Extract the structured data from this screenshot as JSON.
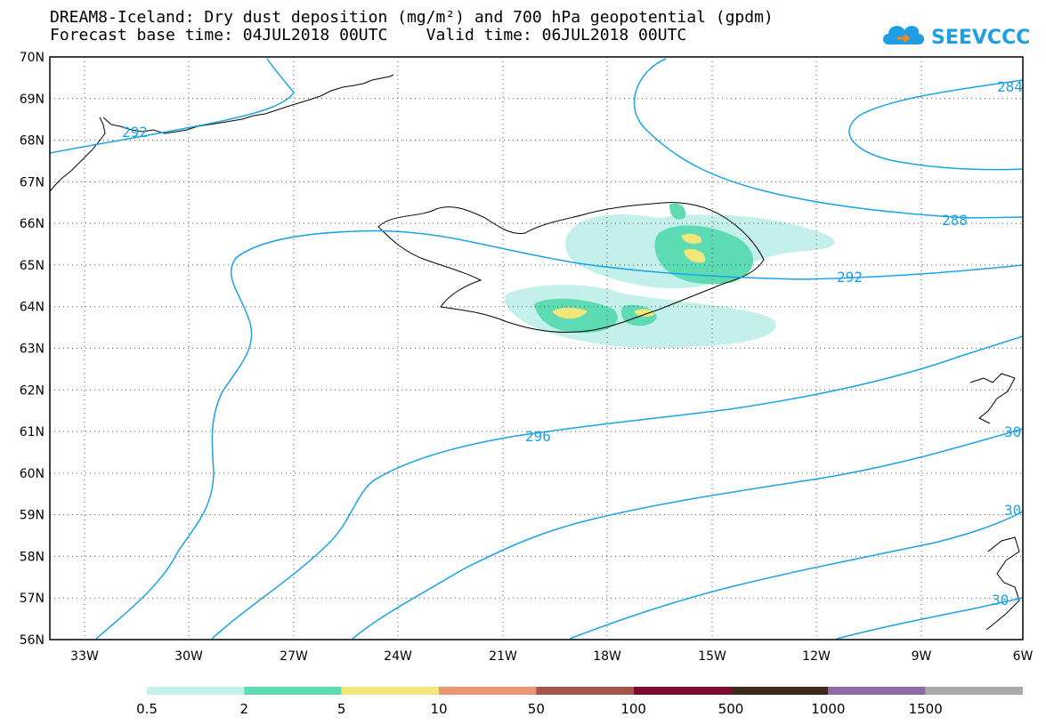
{
  "title_line1": "DREAM8-Iceland: Dry dust deposition (mg/m²) and 700 hPa geopotential (gpdm)",
  "title_line2": "Forecast base time: 04JUL2018 00UTC    Valid time: 06JUL2018 00UTC",
  "logo_text": "SEEVCCC",
  "map": {
    "lat_labels": [
      "70N",
      "69N",
      "68N",
      "67N",
      "66N",
      "65N",
      "64N",
      "63N",
      "62N",
      "61N",
      "60N",
      "59N",
      "58N",
      "57N",
      "56N"
    ],
    "lon_labels": [
      "33W",
      "30W",
      "27W",
      "24W",
      "21W",
      "18W",
      "15W",
      "12W",
      "9W",
      "6W"
    ],
    "contour_labels": [
      "292",
      "284",
      "288",
      "292",
      "296",
      "30",
      "30",
      "30"
    ],
    "contour_color": "#1aa3e8"
  },
  "colorbar": {
    "colors": [
      "#c3f0ea",
      "#5ddcb4",
      "#f3e67a",
      "#ec9773",
      "#a5544a",
      "#7e0a2e",
      "#3e2a1a",
      "#8f6aa6",
      "#aaaaaa"
    ],
    "labels": [
      "0.5",
      "2",
      "5",
      "10",
      "50",
      "100",
      "500",
      "1000",
      "1500"
    ]
  }
}
